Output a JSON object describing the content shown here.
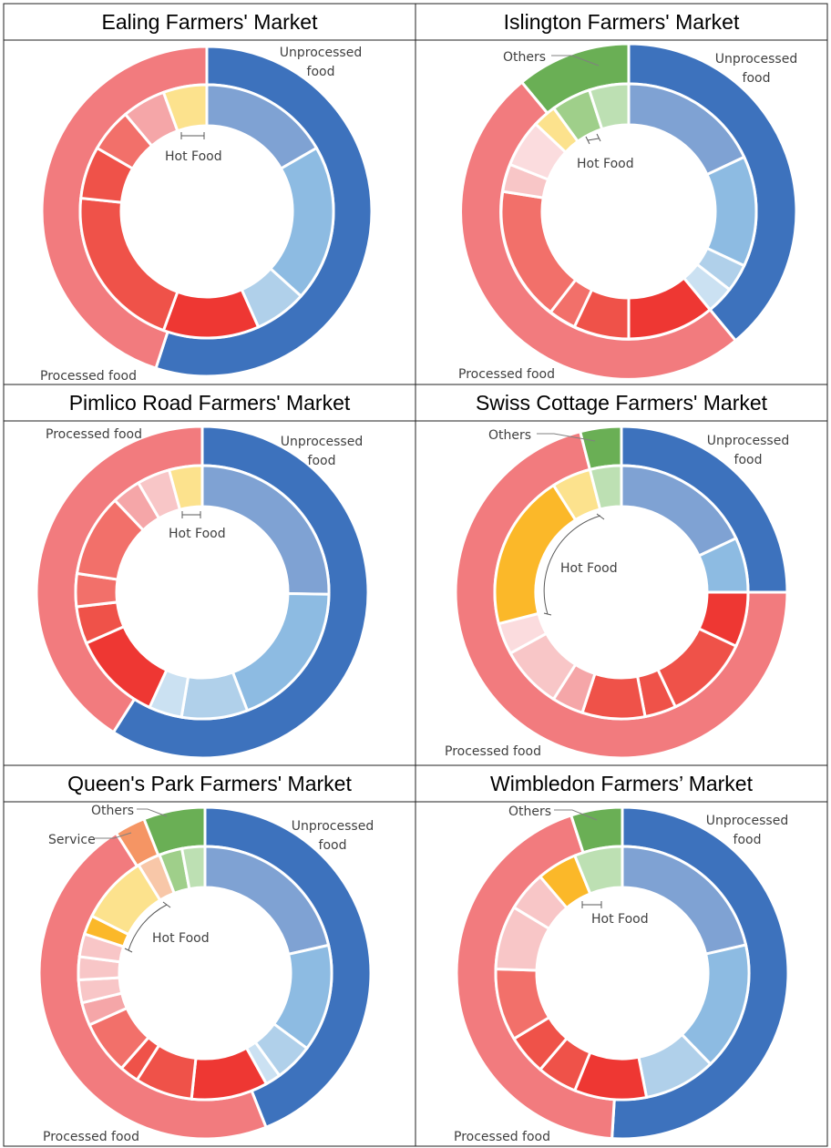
{
  "colors": {
    "u1": "#3D72BD",
    "u2": "#7FA2D3",
    "u3": "#8DBBE2",
    "u4": "#B0D0EA",
    "u5": "#CBE1F2",
    "p1": "#F27B7E",
    "p2": "#EE3733",
    "p3": "#EF5249",
    "p4": "#F2706A",
    "p5": "#F5A6A8",
    "p6": "#F8C6C7",
    "p7": "#FBDCDE",
    "h1": "#FCE28D",
    "h2": "#FBB829",
    "s1": "#F59564",
    "s2": "#F8C7A8",
    "o1": "#6AAF55",
    "o2": "#9FCF8A",
    "o3": "#BDE0B3"
  },
  "chart_data": [
    {
      "type": "pie",
      "title": "Ealing Farmers' Market",
      "labels": {
        "unprocessed": "Unprocessed food",
        "processed": "Processed food",
        "hot_food": "Hot Food"
      },
      "outer": [
        {
          "name": "Unprocessed food",
          "value": 55,
          "color": "u1"
        },
        {
          "name": "Processed food",
          "value": 45,
          "color": "p1"
        }
      ],
      "inner": [
        {
          "value": 15,
          "color": "u2"
        },
        {
          "value": 18,
          "color": "u3"
        },
        {
          "value": 6,
          "color": "u4"
        },
        {
          "value": 11,
          "color": "p2"
        },
        {
          "value": 19,
          "color": "p3"
        },
        {
          "value": 6,
          "color": "p3"
        },
        {
          "value": 5,
          "color": "p4"
        },
        {
          "value": 5,
          "color": "p5"
        },
        {
          "value": 5,
          "color": "h1"
        }
      ]
    },
    {
      "type": "pie",
      "title": "Islington Farmers' Market",
      "labels": {
        "unprocessed": "Unprocessed food",
        "processed": "Processed food",
        "hot_food": "Hot Food",
        "others": "Others"
      },
      "outer": [
        {
          "name": "Unprocessed food",
          "value": 39,
          "color": "u1"
        },
        {
          "name": "Processed food",
          "value": 50,
          "color": "p1"
        },
        {
          "name": "Others",
          "value": 11,
          "color": "o1"
        }
      ],
      "inner": [
        {
          "value": 18,
          "color": "u2"
        },
        {
          "value": 14,
          "color": "u3"
        },
        {
          "value": 3.5,
          "color": "u4"
        },
        {
          "value": 3.5,
          "color": "u5"
        },
        {
          "value": 11,
          "color": "p2"
        },
        {
          "value": 7,
          "color": "p3"
        },
        {
          "value": 3.5,
          "color": "p4"
        },
        {
          "value": 17,
          "color": "p4"
        },
        {
          "value": 3.5,
          "color": "p6"
        },
        {
          "value": 6,
          "color": "p7"
        },
        {
          "value": 3,
          "color": "h1"
        },
        {
          "value": 5,
          "color": "o2"
        },
        {
          "value": 5,
          "color": "o3"
        }
      ]
    },
    {
      "type": "pie",
      "title": "Pimlico Road Farmers' Market",
      "labels": {
        "unprocessed": "Unprocessed food",
        "processed": "Processed food",
        "hot_food": "Hot Food"
      },
      "outer": [
        {
          "name": "Unprocessed food",
          "value": 59,
          "color": "u1"
        },
        {
          "name": "Processed food",
          "value": 41,
          "color": "p1"
        }
      ],
      "inner": [
        {
          "value": 24,
          "color": "u2"
        },
        {
          "value": 18,
          "color": "u3"
        },
        {
          "value": 8,
          "color": "u4"
        },
        {
          "value": 4,
          "color": "u5"
        },
        {
          "value": 11,
          "color": "p2"
        },
        {
          "value": 4.5,
          "color": "p3"
        },
        {
          "value": 4,
          "color": "p4"
        },
        {
          "value": 10,
          "color": "p4"
        },
        {
          "value": 3.5,
          "color": "p5"
        },
        {
          "value": 4,
          "color": "p6"
        },
        {
          "value": 4,
          "color": "h1"
        }
      ]
    },
    {
      "type": "pie",
      "title": "Swiss Cottage Farmers' Market",
      "labels": {
        "unprocessed": "Unprocessed food",
        "processed": "Processed food",
        "hot_food": "Hot Food",
        "others": "Others"
      },
      "outer": [
        {
          "name": "Unprocessed food",
          "value": 25,
          "color": "u1"
        },
        {
          "name": "Processed food",
          "value": 71,
          "color": "p1"
        },
        {
          "name": "Others",
          "value": 4,
          "color": "o1"
        }
      ],
      "inner": [
        {
          "value": 18,
          "color": "u2"
        },
        {
          "value": 7,
          "color": "u3"
        },
        {
          "value": 7,
          "color": "p2"
        },
        {
          "value": 11,
          "color": "p3"
        },
        {
          "value": 4,
          "color": "p3"
        },
        {
          "value": 8,
          "color": "p3"
        },
        {
          "value": 4,
          "color": "p5"
        },
        {
          "value": 8,
          "color": "p6"
        },
        {
          "value": 4,
          "color": "p7"
        },
        {
          "value": 20,
          "color": "h2"
        },
        {
          "value": 5,
          "color": "h1"
        },
        {
          "value": 4,
          "color": "o3"
        }
      ]
    },
    {
      "type": "pie",
      "title": "Queen's Park Farmers' Market",
      "labels": {
        "unprocessed": "Unprocessed food",
        "processed": "Processed food",
        "hot_food": "Hot Food",
        "others": "Others",
        "service": "Service"
      },
      "outer": [
        {
          "name": "Unprocessed food",
          "value": 44,
          "color": "u1"
        },
        {
          "name": "Processed food",
          "value": 47,
          "color": "p1"
        },
        {
          "name": "Service",
          "value": 3,
          "color": "s1"
        },
        {
          "name": "Others",
          "value": 6,
          "color": "o1"
        }
      ],
      "inner": [
        {
          "value": 22,
          "color": "u2"
        },
        {
          "value": 14,
          "color": "u3"
        },
        {
          "value": 5,
          "color": "u4"
        },
        {
          "value": 2,
          "color": "u5"
        },
        {
          "value": 10,
          "color": "p2"
        },
        {
          "value": 7.5,
          "color": "p3"
        },
        {
          "value": 2.5,
          "color": "p3"
        },
        {
          "value": 7,
          "color": "p4"
        },
        {
          "value": 3,
          "color": "p5"
        },
        {
          "value": 3,
          "color": "p6"
        },
        {
          "value": 3,
          "color": "p6"
        },
        {
          "value": 3,
          "color": "p6"
        },
        {
          "value": 2.5,
          "color": "h2"
        },
        {
          "value": 9,
          "color": "h1"
        },
        {
          "value": 3,
          "color": "s2"
        },
        {
          "value": 3,
          "color": "o2"
        },
        {
          "value": 3,
          "color": "o3"
        }
      ]
    },
    {
      "type": "pie",
      "title": "Wimbledon Farmers’ Market",
      "labels": {
        "unprocessed": "Unprocessed food",
        "processed": "Processed food",
        "hot_food": "Hot Food",
        "others": "Others"
      },
      "outer": [
        {
          "name": "Unprocessed food",
          "value": 51,
          "color": "u1"
        },
        {
          "name": "Processed food",
          "value": 44,
          "color": "p1"
        },
        {
          "name": "Others",
          "value": 5,
          "color": "o1"
        }
      ],
      "inner": [
        {
          "value": 21,
          "color": "u2"
        },
        {
          "value": 16,
          "color": "u3"
        },
        {
          "value": 9,
          "color": "u4"
        },
        {
          "value": 9,
          "color": "p2"
        },
        {
          "value": 5,
          "color": "p3"
        },
        {
          "value": 5,
          "color": "p3"
        },
        {
          "value": 9,
          "color": "p4"
        },
        {
          "value": 8,
          "color": "p6"
        },
        {
          "value": 5,
          "color": "p6"
        },
        {
          "value": 5,
          "color": "h2"
        },
        {
          "value": 6,
          "color": "o3"
        }
      ]
    }
  ]
}
